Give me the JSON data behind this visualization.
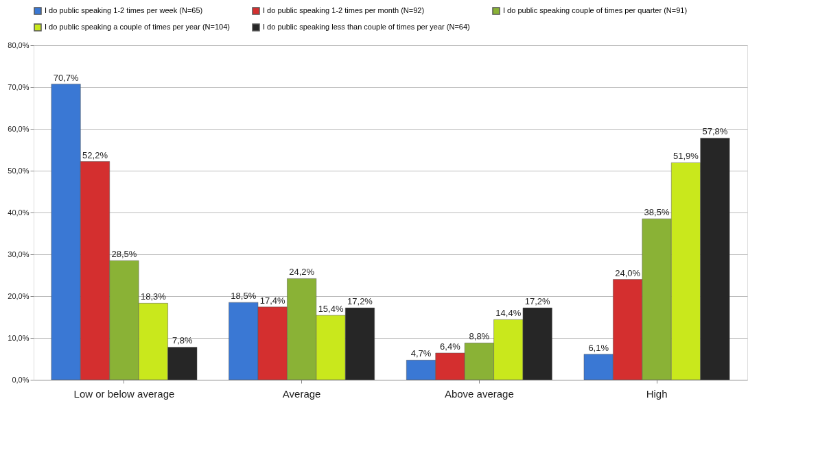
{
  "chart_data": {
    "type": "bar",
    "categories": [
      "Low or below average",
      "Average",
      "Above average",
      "High"
    ],
    "series": [
      {
        "name": "I do public speaking 1-2 times per week (N=65)",
        "color": "#3a78d4",
        "values": [
          70.7,
          18.5,
          4.7,
          6.1
        ],
        "value_labels": [
          "70,7%",
          "18,5%",
          "4,7%",
          "6,1%"
        ]
      },
      {
        "name": "I do public speaking 1-2 times per month (N=92)",
        "color": "#d42f2f",
        "values": [
          52.2,
          17.4,
          6.4,
          24.0
        ],
        "value_labels": [
          "52,2%",
          "17,4%",
          "6,4%",
          "24,0%"
        ]
      },
      {
        "name": "I do public speaking couple of times per quarter (N=91)",
        "color": "#8ab236",
        "values": [
          28.5,
          24.2,
          8.8,
          38.5
        ],
        "value_labels": [
          "28,5%",
          "24,2%",
          "8,8%",
          "38,5%"
        ]
      },
      {
        "name": "I do public speaking a couple of times per year (N=104)",
        "color": "#c9e81c",
        "values": [
          18.3,
          15.4,
          14.4,
          51.9
        ],
        "value_labels": [
          "18,3%",
          "15,4%",
          "14,4%",
          "51,9%"
        ]
      },
      {
        "name": "I do public speaking less than couple of times per year (N=64)",
        "color": "#262626",
        "values": [
          7.8,
          17.2,
          17.2,
          57.8
        ],
        "value_labels": [
          "7,8%",
          "17,2%",
          "17,2%",
          "57,8%"
        ]
      }
    ],
    "ylim": [
      0,
      80
    ],
    "yticks": [
      {
        "value": 0,
        "label": "0,0%"
      },
      {
        "value": 10,
        "label": "10,0%"
      },
      {
        "value": 20,
        "label": "20,0%"
      },
      {
        "value": 30,
        "label": "30,0%"
      },
      {
        "value": 40,
        "label": "40,0%"
      },
      {
        "value": 50,
        "label": "50,0%"
      },
      {
        "value": 60,
        "label": "60,0%"
      },
      {
        "value": 70,
        "label": "70,0%"
      },
      {
        "value": 80,
        "label": "80,0%"
      }
    ],
    "grid": "y",
    "legend": "top"
  }
}
